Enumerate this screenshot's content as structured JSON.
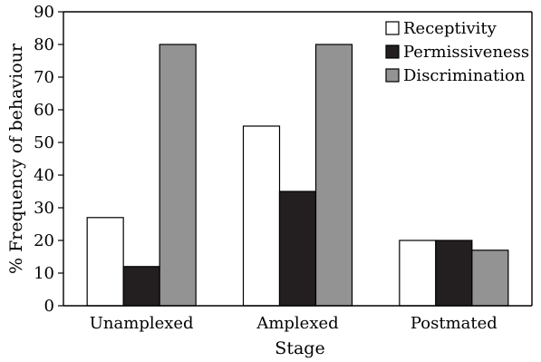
{
  "chart_data": {
    "type": "bar",
    "xlabel": "Stage",
    "ylabel": "% Frequency of behaviour",
    "ylim": [
      0,
      90
    ],
    "ytick_step": 10,
    "categories": [
      "Unamplexed",
      "Amplexed",
      "Postmated"
    ],
    "series": [
      {
        "name": "Receptivity",
        "values": [
          27,
          55,
          20
        ],
        "color": "#ffffff"
      },
      {
        "name": "Permissiveness",
        "values": [
          12,
          35,
          20
        ],
        "color": "#231f20"
      },
      {
        "name": "Discrimination",
        "values": [
          80,
          80,
          17
        ],
        "color": "#939393"
      }
    ],
    "legend_position": "top-right",
    "grid": false
  }
}
